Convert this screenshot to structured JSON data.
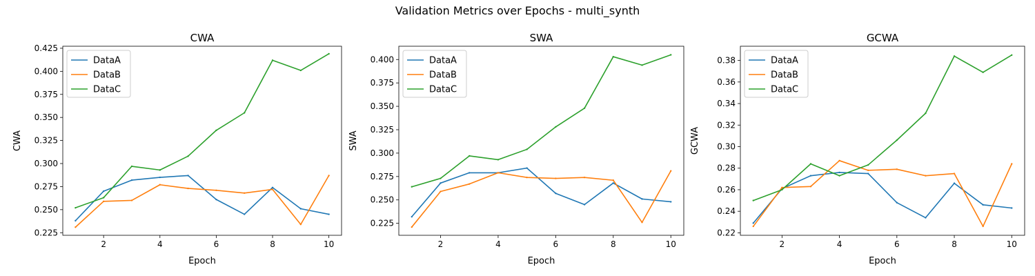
{
  "figure": {
    "title": "Validation Metrics over Epochs - multi_synth"
  },
  "colors": {
    "DataA": "#1f77b4",
    "DataB": "#ff7f0e",
    "DataC": "#2ca02c"
  },
  "chart_data": [
    {
      "type": "line",
      "title": "CWA",
      "xlabel": "Epoch",
      "ylabel": "CWA",
      "x": [
        1,
        2,
        3,
        4,
        5,
        6,
        7,
        8,
        9,
        10
      ],
      "xlim": [
        0.55,
        10.45
      ],
      "ylim": [
        0.2222,
        0.4272
      ],
      "xticks": [
        2,
        4,
        6,
        8,
        10
      ],
      "yticks": [
        0.225,
        0.25,
        0.275,
        0.3,
        0.325,
        0.35,
        0.375,
        0.4,
        0.425
      ],
      "ytick_labels": [
        "0.225",
        "0.250",
        "0.275",
        "0.300",
        "0.325",
        "0.350",
        "0.375",
        "0.400",
        "0.425"
      ],
      "grid": false,
      "legend_position": "top-left",
      "series": [
        {
          "name": "DataA",
          "values": [
            0.238,
            0.27,
            0.282,
            0.285,
            0.287,
            0.261,
            0.245,
            0.274,
            0.251,
            0.245
          ]
        },
        {
          "name": "DataB",
          "values": [
            0.231,
            0.259,
            0.26,
            0.277,
            0.273,
            0.271,
            0.268,
            0.272,
            0.234,
            0.287
          ]
        },
        {
          "name": "DataC",
          "values": [
            0.252,
            0.263,
            0.297,
            0.293,
            0.308,
            0.336,
            0.355,
            0.412,
            0.401,
            0.419
          ]
        }
      ]
    },
    {
      "type": "line",
      "title": "SWA",
      "xlabel": "Epoch",
      "ylabel": "SWA",
      "x": [
        1,
        2,
        3,
        4,
        5,
        6,
        7,
        8,
        9,
        10
      ],
      "xlim": [
        0.55,
        10.45
      ],
      "ylim": [
        0.2122,
        0.4142
      ],
      "xticks": [
        2,
        4,
        6,
        8,
        10
      ],
      "yticks": [
        0.225,
        0.25,
        0.275,
        0.3,
        0.325,
        0.35,
        0.375,
        0.4
      ],
      "ytick_labels": [
        "0.225",
        "0.250",
        "0.275",
        "0.300",
        "0.325",
        "0.350",
        "0.375",
        "0.400"
      ],
      "grid": false,
      "legend_position": "top-left",
      "series": [
        {
          "name": "DataA",
          "values": [
            0.232,
            0.268,
            0.279,
            0.279,
            0.284,
            0.257,
            0.245,
            0.268,
            0.251,
            0.248
          ]
        },
        {
          "name": "DataB",
          "values": [
            0.221,
            0.259,
            0.267,
            0.279,
            0.274,
            0.273,
            0.274,
            0.271,
            0.226,
            0.281
          ]
        },
        {
          "name": "DataC",
          "values": [
            0.264,
            0.273,
            0.297,
            0.293,
            0.304,
            0.328,
            0.348,
            0.403,
            0.394,
            0.405
          ]
        }
      ]
    },
    {
      "type": "line",
      "title": "GCWA",
      "xlabel": "Epoch",
      "ylabel": "GCWA",
      "x": [
        1,
        2,
        3,
        4,
        5,
        6,
        7,
        8,
        9,
        10
      ],
      "xlim": [
        0.55,
        10.45
      ],
      "ylim": [
        0.2177,
        0.3932
      ],
      "xticks": [
        2,
        4,
        6,
        8,
        10
      ],
      "yticks": [
        0.22,
        0.24,
        0.26,
        0.28,
        0.3,
        0.32,
        0.34,
        0.36,
        0.38
      ],
      "ytick_labels": [
        "0.22",
        "0.24",
        "0.26",
        "0.28",
        "0.30",
        "0.32",
        "0.34",
        "0.36",
        "0.38"
      ],
      "grid": false,
      "legend_position": "top-left",
      "series": [
        {
          "name": "DataA",
          "values": [
            0.229,
            0.261,
            0.273,
            0.276,
            0.275,
            0.248,
            0.234,
            0.266,
            0.246,
            0.243
          ]
        },
        {
          "name": "DataB",
          "values": [
            0.226,
            0.262,
            0.263,
            0.287,
            0.278,
            0.279,
            0.273,
            0.275,
            0.226,
            0.284
          ]
        },
        {
          "name": "DataC",
          "values": [
            0.25,
            0.26,
            0.284,
            0.273,
            0.283,
            0.306,
            0.331,
            0.384,
            0.369,
            0.385
          ]
        }
      ]
    }
  ]
}
